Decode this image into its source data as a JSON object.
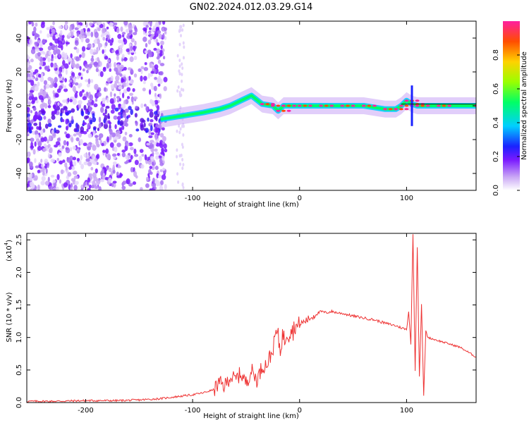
{
  "title": "GN02.2024.012.03.29.G14",
  "chart_data": [
    {
      "type": "heatmap",
      "xlabel": "Height of straight line (km)",
      "ylabel": "Frequency (Hz)",
      "xlim": [
        -255,
        165
      ],
      "ylim": [
        -50,
        50
      ],
      "x_ticks": [
        -200,
        -100,
        0,
        100
      ],
      "x_tick_labels": [
        "-200",
        "-100",
        "0",
        "100"
      ],
      "y_ticks": [
        -40,
        -20,
        0,
        20,
        40
      ],
      "y_tick_labels": [
        "-40",
        "-20",
        "0",
        "20",
        "40"
      ],
      "colorbar": {
        "label": "Normalized spectral amplitude",
        "range": [
          0,
          1
        ],
        "ticks": [
          0.0,
          0.2,
          0.4,
          0.6,
          0.8
        ],
        "tick_labels": [
          "0.0",
          "0.2",
          "0.4",
          "0.6",
          "0.8"
        ],
        "colors": [
          "#ffffff",
          "#c9a6f5",
          "#7a1aff",
          "#1a22ff",
          "#00cfff",
          "#00ff66",
          "#99ff00",
          "#ffd200",
          "#ff4d00",
          "#ff1fa0"
        ]
      },
      "ridge": {
        "x": [
          -130,
          -110,
          -90,
          -75,
          -65,
          -55,
          -45,
          -35,
          -25,
          -20,
          -15,
          0,
          20,
          40,
          60,
          80,
          90,
          95,
          100,
          105,
          110,
          130,
          165
        ],
        "y": [
          -8,
          -6,
          -4,
          -2,
          0,
          3,
          6,
          1,
          0,
          -3,
          0,
          0,
          0,
          0,
          0,
          -2,
          -2,
          0,
          3,
          1,
          0,
          0,
          0
        ]
      },
      "noise_extent_km": [
        -255,
        -125
      ]
    },
    {
      "type": "line",
      "xlabel": "Height of straight line (km)",
      "ylabel": "SNR (10 * v/v)",
      "y_scale_label": "(x10",
      "y_scale_exponent": "4",
      "y_scale_suffix": ")",
      "xlim": [
        -255,
        165
      ],
      "ylim": [
        0,
        2.6
      ],
      "x_ticks": [
        -200,
        -100,
        0,
        100
      ],
      "x_tick_labels": [
        "-200",
        "-100",
        "0",
        "100"
      ],
      "y_ticks": [
        0.0,
        0.5,
        1.0,
        1.5,
        2.0,
        2.5
      ],
      "y_tick_labels": [
        "0.0",
        "0.5",
        "1.0",
        "1.5",
        "2.0",
        "2.5"
      ],
      "line_color": "#ee3333",
      "series": [
        {
          "x": [
            -255,
            -230,
            -200,
            -170,
            -150,
            -140,
            -130,
            -120,
            -110,
            -100,
            -90,
            -80,
            -75,
            -70,
            -65,
            -60,
            -55,
            -50,
            -45,
            -40,
            -35,
            -30,
            -28,
            -26,
            -24,
            -22,
            -20,
            -18,
            -16,
            -14,
            -12,
            -10,
            -8,
            -6,
            -4,
            -2,
            0,
            5,
            10,
            15,
            20,
            25,
            30,
            35,
            40,
            50,
            60,
            70,
            80,
            90,
            95,
            100,
            102,
            104,
            106,
            108,
            110,
            112,
            114,
            116,
            118,
            120,
            130,
            140,
            150,
            165
          ],
          "y": [
            0.02,
            0.02,
            0.03,
            0.03,
            0.04,
            0.05,
            0.06,
            0.08,
            0.1,
            0.12,
            0.15,
            0.2,
            0.3,
            0.25,
            0.4,
            0.35,
            0.45,
            0.3,
            0.5,
            0.35,
            0.55,
            0.6,
            0.7,
            0.75,
            0.9,
            1.1,
            1.0,
            0.8,
            1.05,
            0.95,
            1.1,
            1.05,
            1.15,
            1.1,
            1.2,
            1.15,
            1.2,
            1.25,
            1.3,
            1.35,
            1.4,
            1.38,
            1.4,
            1.38,
            1.37,
            1.33,
            1.3,
            1.27,
            1.22,
            1.18,
            1.15,
            1.12,
            1.4,
            0.9,
            2.6,
            0.5,
            2.4,
            0.4,
            1.5,
            0.1,
            1.1,
            1.0,
            0.95,
            0.9,
            0.85,
            0.7
          ]
        }
      ]
    }
  ]
}
